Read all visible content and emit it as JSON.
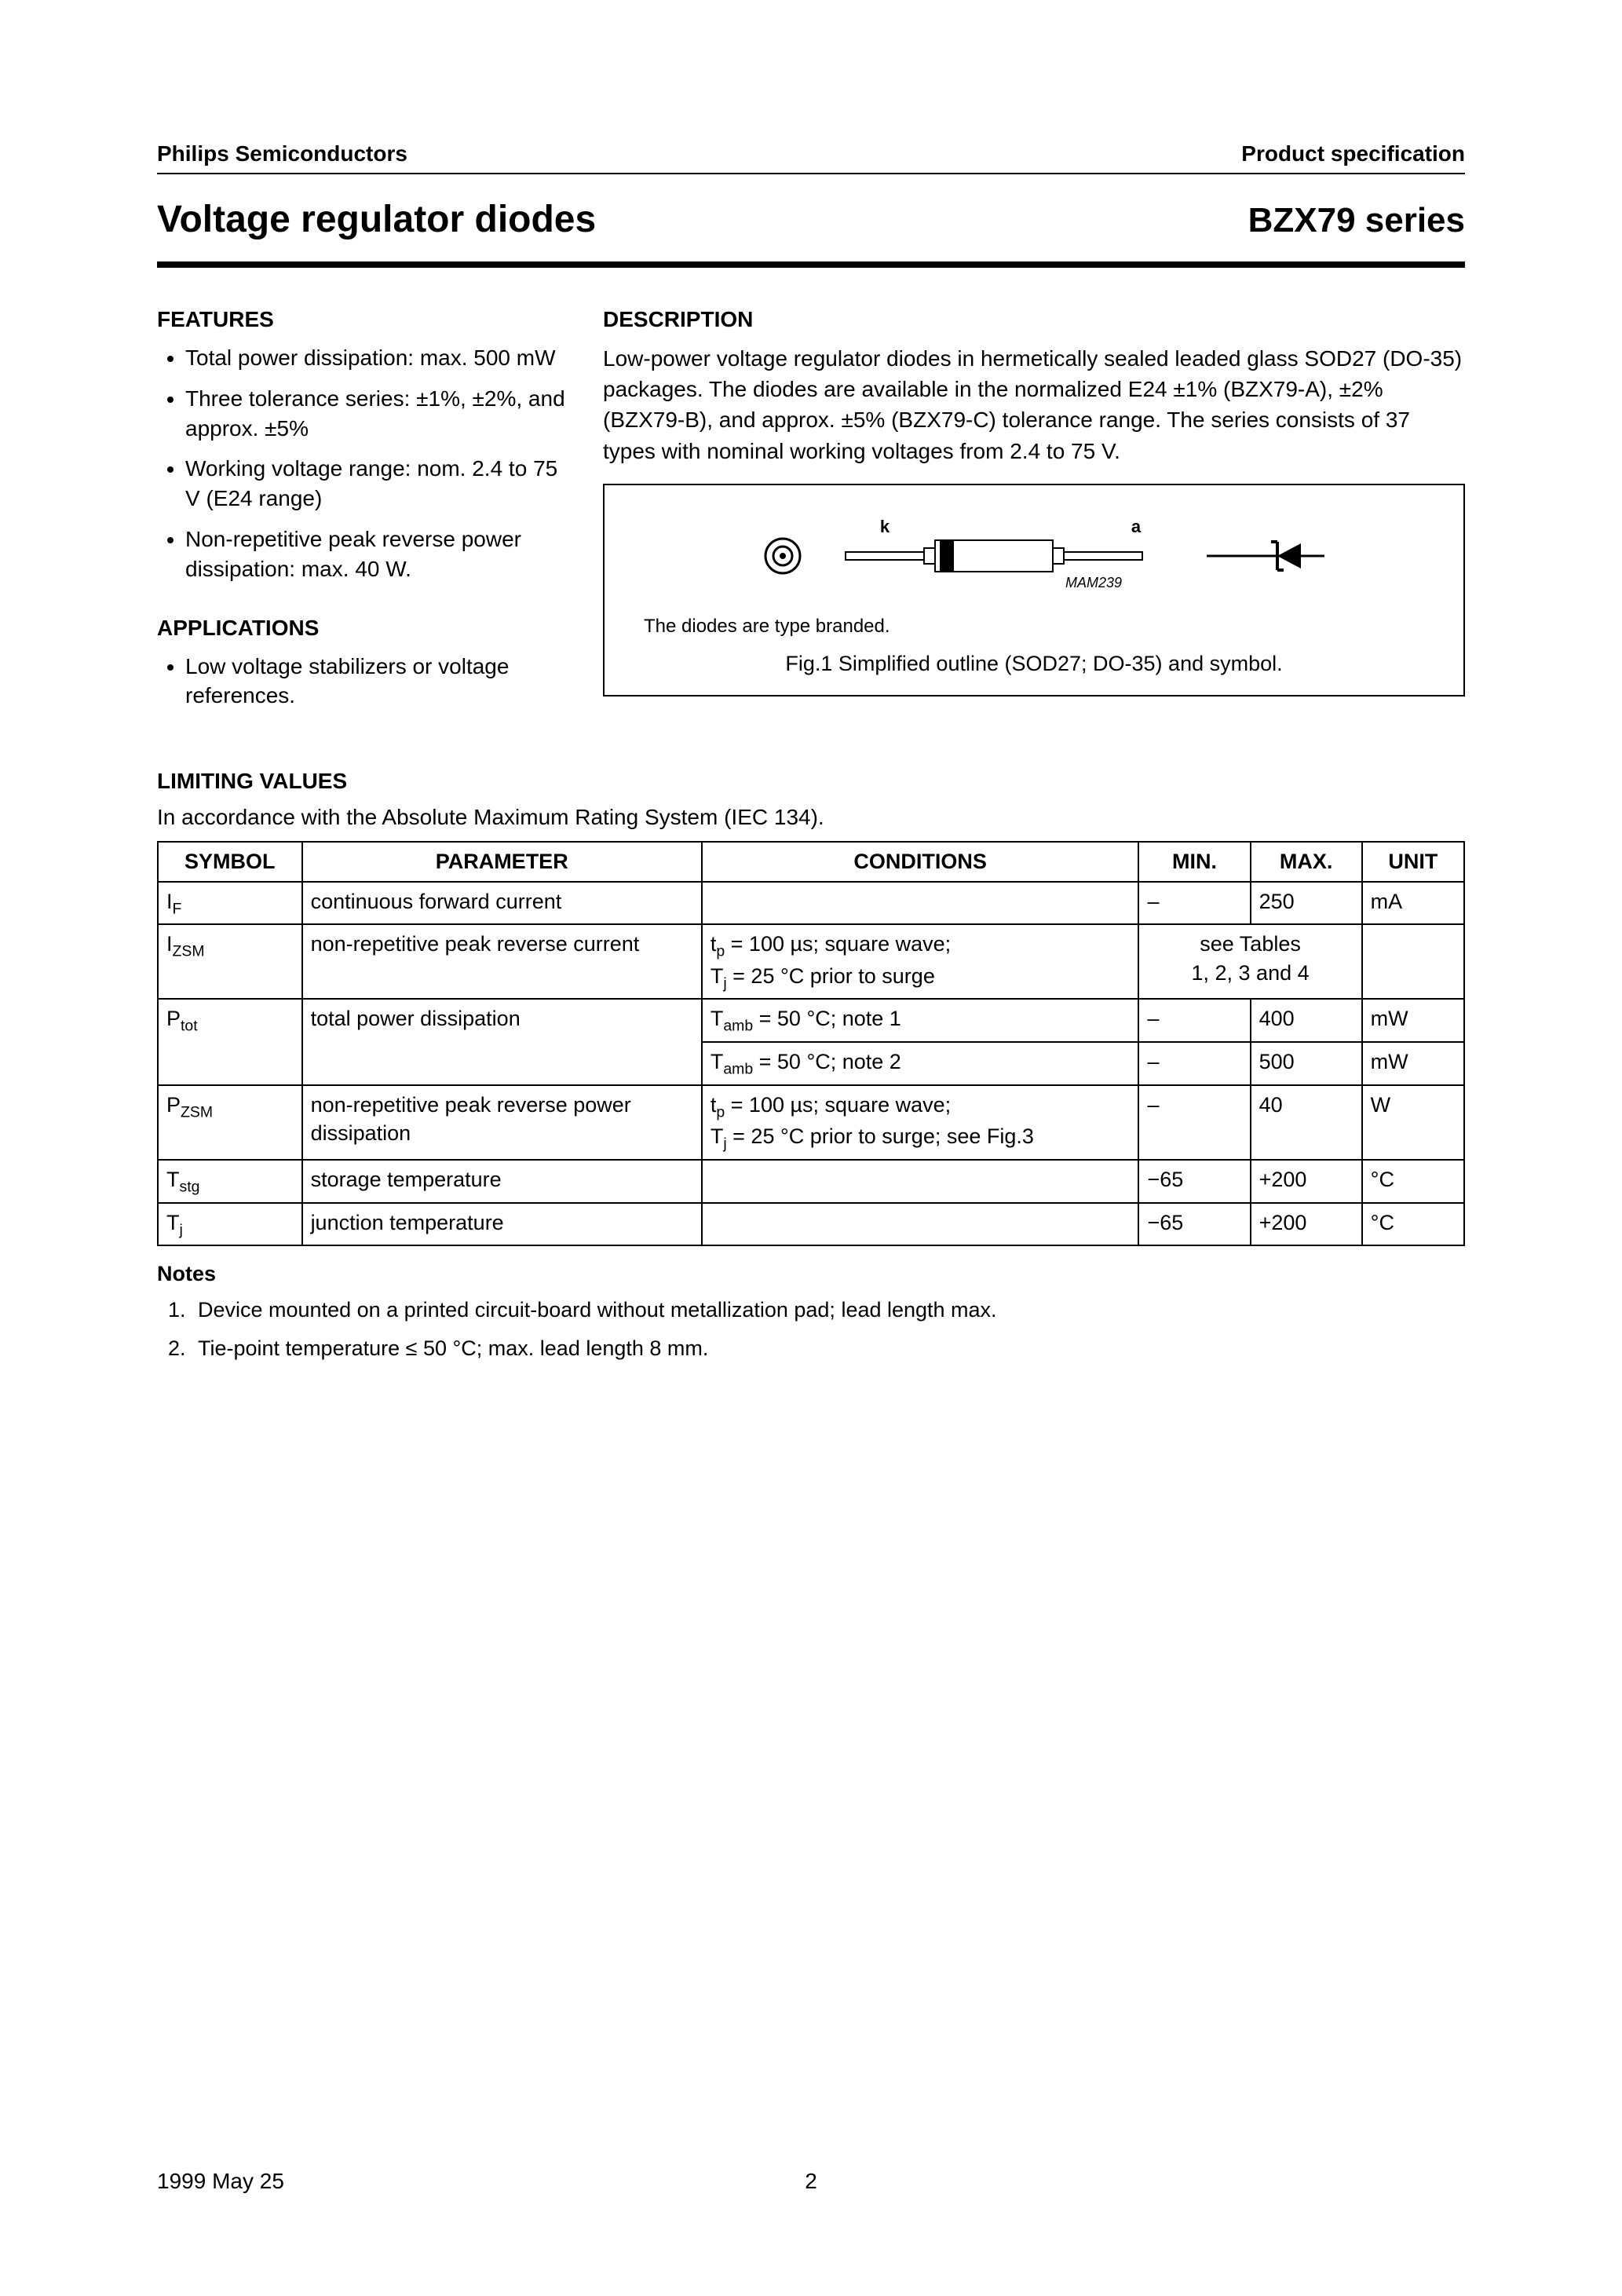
{
  "colors": {
    "text": "#000000",
    "background": "#ffffff",
    "rule": "#000000",
    "table_border": "#000000",
    "figure_border": "#000000"
  },
  "typography": {
    "body_family": "Arial, Helvetica, sans-serif",
    "body_size_pt": 11,
    "title_size_pt": 20,
    "header_size_pt": 11,
    "figure_note_size_pt": 9
  },
  "header": {
    "left": "Philips Semiconductors",
    "right": "Product specification"
  },
  "title": {
    "left": "Voltage regulator diodes",
    "right": "BZX79 series"
  },
  "features": {
    "heading": "FEATURES",
    "items": [
      "Total power dissipation: max. 500 mW",
      "Three tolerance series: ±1%, ±2%, and approx. ±5%",
      "Working voltage range: nom. 2.4 to 75 V (E24 range)",
      "Non-repetitive peak reverse power dissipation: max. 40 W."
    ]
  },
  "applications": {
    "heading": "APPLICATIONS",
    "items": [
      "Low voltage stabilizers or voltage references."
    ]
  },
  "description": {
    "heading": "DESCRIPTION",
    "text": "Low-power voltage regulator diodes in hermetically sealed leaded glass SOD27 (DO-35) packages. The diodes are available in the normalized E24 ±1% (BZX79-A), ±2% (BZX79-B), and approx. ±5% (BZX79-C) tolerance range. The series consists of 37 types with nominal working voltages from 2.4 to 75 V."
  },
  "figure1": {
    "type": "diagram",
    "labels": {
      "cathode": "k",
      "anode": "a",
      "code": "MAM239"
    },
    "note": "The diodes are type branded.",
    "caption": "Fig.1   Simplified outline (SOD27; DO-35) and symbol.",
    "stroke_color": "#000000",
    "stroke_width": 2
  },
  "limiting": {
    "heading": "LIMITING VALUES",
    "subtext": "In accordance with the Absolute Maximum Rating System (IEC 134).",
    "columns": [
      "SYMBOL",
      "PARAMETER",
      "CONDITIONS",
      "MIN.",
      "MAX.",
      "UNIT"
    ],
    "rows": [
      {
        "symbol_html": "I<span class=\"sub\">F</span>",
        "parameter": "continuous forward current",
        "conditions": "",
        "min": "–",
        "max": "250",
        "unit": "mA"
      },
      {
        "symbol_html": "I<span class=\"sub\">ZSM</span>",
        "parameter": "non-repetitive peak reverse current",
        "conditions_html": "t<span class=\"sub\">p</span> = 100 µs; square wave;<br>T<span class=\"sub\">j</span> = 25 °C prior to surge",
        "minmax_merged_html": "see Tables<br>1, 2, 3 and 4",
        "unit": ""
      },
      {
        "symbol_html": "P<span class=\"sub\">tot</span>",
        "parameter": "total power dissipation",
        "rowspan": 2,
        "cond_rows": [
          {
            "conditions_html": "T<span class=\"sub\">amb</span> = 50 °C; note 1",
            "min": "–",
            "max": "400",
            "unit": "mW"
          },
          {
            "conditions_html": "T<span class=\"sub\">amb</span> = 50 °C; note 2",
            "min": "–",
            "max": "500",
            "unit": "mW"
          }
        ]
      },
      {
        "symbol_html": "P<span class=\"sub\">ZSM</span>",
        "parameter": "non-repetitive peak reverse power dissipation",
        "conditions_html": "t<span class=\"sub\">p</span> = 100 µs; square wave;<br>T<span class=\"sub\">j</span> = 25 °C prior to surge; see Fig.3",
        "min": "–",
        "max": "40",
        "unit": "W"
      },
      {
        "symbol_html": "T<span class=\"sub\">stg</span>",
        "parameter": "storage temperature",
        "conditions": "",
        "min": "−65",
        "max": "+200",
        "unit": "°C"
      },
      {
        "symbol_html": "T<span class=\"sub\">j</span>",
        "parameter": "junction temperature",
        "conditions": "",
        "min": "−65",
        "max": "+200",
        "unit": "°C"
      }
    ]
  },
  "notes": {
    "heading": "Notes",
    "items": [
      "Device mounted on a printed circuit-board without metallization pad; lead length max.",
      "Tie-point temperature ≤ 50 °C; max. lead length 8 mm."
    ]
  },
  "footer": {
    "date": "1999 May 25",
    "page": "2"
  }
}
